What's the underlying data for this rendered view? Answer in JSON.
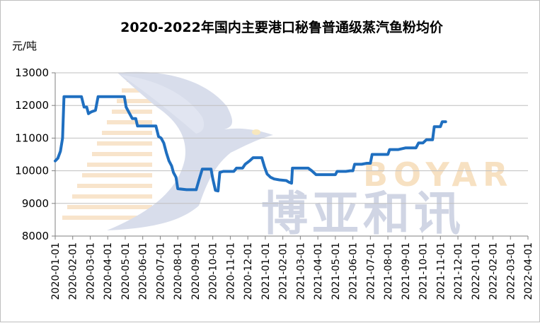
{
  "chart_data": {
    "type": "line",
    "title": "2020-2022年国内主要港口秘鲁普通级蒸汽鱼粉均价",
    "ylabel": "元/吨",
    "ylim": [
      8000,
      13000
    ],
    "yticks": [
      "13000",
      "12000",
      "11000",
      "10000",
      "9000",
      "8000"
    ],
    "grid": true,
    "legend": "none",
    "categories": [
      "2020-01-01",
      "2020-02-01",
      "2020-03-01",
      "2020-04-01",
      "2020-05-01",
      "2020-06-01",
      "2020-07-01",
      "2020-08-01",
      "2020-09-01",
      "2020-10-01",
      "2020-11-01",
      "2020-12-01",
      "2021-01-01",
      "2021-02-01",
      "2021-03-01",
      "2021-04-01",
      "2021-05-01",
      "2021-06-01",
      "2021-07-01",
      "2021-08-01",
      "2021-09-01",
      "2021-10-01",
      "2021-11-01",
      "2021-12-01",
      "2022-01-01",
      "2022-02-01",
      "2022-03-01",
      "2022-04-01"
    ],
    "series": [
      {
        "color": "#1f6fc0",
        "points": [
          [
            0.0,
            10300
          ],
          [
            0.15,
            10380
          ],
          [
            0.3,
            10600
          ],
          [
            0.42,
            11000
          ],
          [
            0.5,
            12270
          ],
          [
            1.0,
            12270
          ],
          [
            1.5,
            12270
          ],
          [
            1.65,
            11950
          ],
          [
            1.8,
            11950
          ],
          [
            1.9,
            11750
          ],
          [
            2.05,
            11800
          ],
          [
            2.3,
            11850
          ],
          [
            2.45,
            12270
          ],
          [
            3.0,
            12270
          ],
          [
            3.5,
            12270
          ],
          [
            3.95,
            12270
          ],
          [
            4.05,
            11950
          ],
          [
            4.2,
            11800
          ],
          [
            4.4,
            11600
          ],
          [
            4.6,
            11600
          ],
          [
            4.7,
            11370
          ],
          [
            5.2,
            11370
          ],
          [
            5.75,
            11370
          ],
          [
            5.9,
            11050
          ],
          [
            6.05,
            11000
          ],
          [
            6.2,
            10850
          ],
          [
            6.35,
            10550
          ],
          [
            6.5,
            10300
          ],
          [
            6.65,
            10150
          ],
          [
            6.75,
            9950
          ],
          [
            6.9,
            9800
          ],
          [
            7.0,
            9450
          ],
          [
            7.5,
            9420
          ],
          [
            8.05,
            9420
          ],
          [
            8.2,
            9700
          ],
          [
            8.4,
            10050
          ],
          [
            8.9,
            10050
          ],
          [
            9.0,
            9750
          ],
          [
            9.15,
            9400
          ],
          [
            9.3,
            9380
          ],
          [
            9.4,
            9950
          ],
          [
            9.6,
            9980
          ],
          [
            10.0,
            9980
          ],
          [
            10.2,
            9980
          ],
          [
            10.35,
            10080
          ],
          [
            10.7,
            10080
          ],
          [
            10.85,
            10200
          ],
          [
            11.1,
            10300
          ],
          [
            11.3,
            10400
          ],
          [
            11.8,
            10400
          ],
          [
            11.95,
            10120
          ],
          [
            12.1,
            9900
          ],
          [
            12.3,
            9800
          ],
          [
            12.5,
            9750
          ],
          [
            12.8,
            9720
          ],
          [
            13.2,
            9700
          ],
          [
            13.35,
            9650
          ],
          [
            13.5,
            9620
          ],
          [
            13.55,
            10080
          ],
          [
            14.0,
            10080
          ],
          [
            14.45,
            10080
          ],
          [
            14.65,
            10000
          ],
          [
            14.9,
            9880
          ],
          [
            15.3,
            9880
          ],
          [
            15.8,
            9880
          ],
          [
            16.0,
            9880
          ],
          [
            16.1,
            9980
          ],
          [
            16.6,
            9980
          ],
          [
            16.85,
            10000
          ],
          [
            17.0,
            10000
          ],
          [
            17.1,
            10200
          ],
          [
            17.5,
            10200
          ],
          [
            17.8,
            10230
          ],
          [
            18.0,
            10230
          ],
          [
            18.1,
            10500
          ],
          [
            18.6,
            10500
          ],
          [
            19.0,
            10500
          ],
          [
            19.1,
            10650
          ],
          [
            19.6,
            10650
          ],
          [
            20.0,
            10700
          ],
          [
            20.6,
            10700
          ],
          [
            20.75,
            10850
          ],
          [
            21.0,
            10850
          ],
          [
            21.2,
            10950
          ],
          [
            21.55,
            10950
          ],
          [
            21.65,
            11350
          ],
          [
            22.0,
            11350
          ],
          [
            22.1,
            11500
          ],
          [
            22.3,
            11500
          ]
        ]
      }
    ]
  },
  "watermark": {
    "brand_en": "BOYAR",
    "brand_cn": "博亚和讯"
  }
}
